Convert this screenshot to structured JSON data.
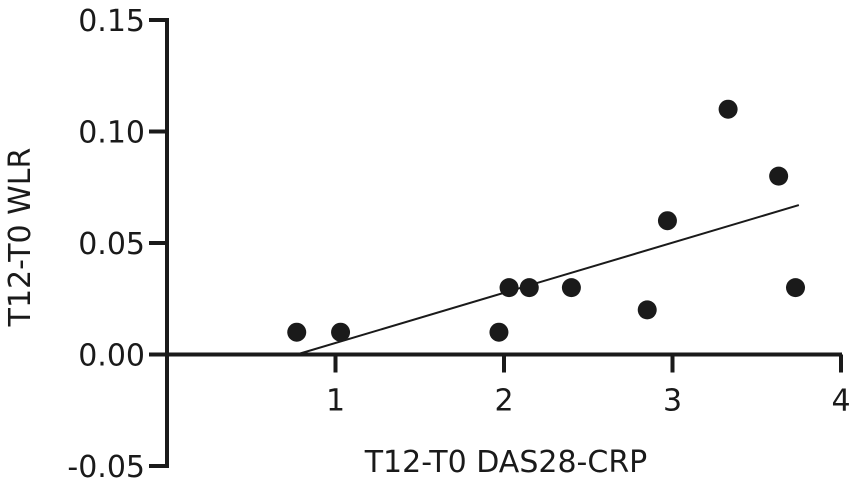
{
  "chart_data": {
    "type": "scatter",
    "title": "",
    "xlabel": "T12-T0 DAS28-CRP",
    "ylabel": "T12-T0 WLR",
    "xlim": [
      0,
      4
    ],
    "ylim": [
      -0.05,
      0.15
    ],
    "xticks": [
      {
        "value": 1,
        "label": "1"
      },
      {
        "value": 2,
        "label": "2"
      },
      {
        "value": 3,
        "label": "3"
      },
      {
        "value": 4,
        "label": "4"
      }
    ],
    "yticks": [
      {
        "value": -0.05,
        "label": "-0.05"
      },
      {
        "value": 0.0,
        "label": "0.00"
      },
      {
        "value": 0.05,
        "label": "0.05"
      },
      {
        "value": 0.1,
        "label": "0.10"
      },
      {
        "value": 0.15,
        "label": "0.15"
      }
    ],
    "points": [
      {
        "x": 0.77,
        "y": 0.01
      },
      {
        "x": 1.03,
        "y": 0.01
      },
      {
        "x": 1.97,
        "y": 0.01
      },
      {
        "x": 2.03,
        "y": 0.03
      },
      {
        "x": 2.15,
        "y": 0.03
      },
      {
        "x": 2.4,
        "y": 0.03
      },
      {
        "x": 2.85,
        "y": 0.02
      },
      {
        "x": 2.97,
        "y": 0.06
      },
      {
        "x": 3.33,
        "y": 0.11
      },
      {
        "x": 3.63,
        "y": 0.08
      },
      {
        "x": 3.73,
        "y": 0.03
      }
    ],
    "fit_line": {
      "x1": 0.77,
      "y1": 0.0,
      "x2": 3.75,
      "y2": 0.067
    },
    "grid": false,
    "colors": {
      "marker": "#1a1a1a",
      "axis": "#1a1a1a"
    }
  }
}
